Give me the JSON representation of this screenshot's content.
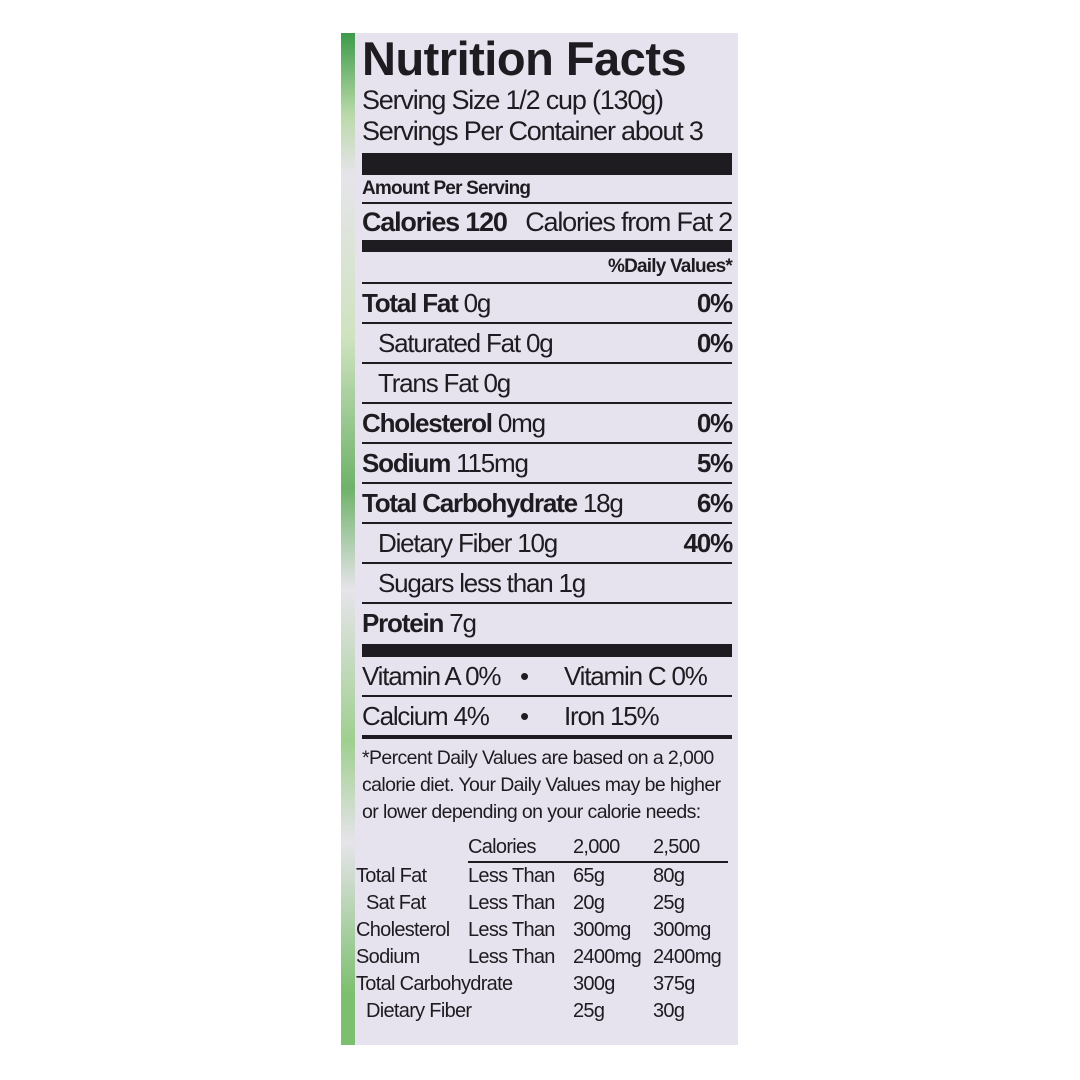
{
  "title": "Nutrition Facts",
  "serving_size": "Serving Size 1/2 cup (130g)",
  "servings_per_container": "Servings Per Container about 3",
  "amount_per_serving": "Amount Per Serving",
  "calories": {
    "label": "Calories 120",
    "from_fat": "Calories from Fat 2"
  },
  "daily_values_header": "%Daily Values*",
  "nutrients": [
    {
      "name": "Total Fat",
      "amount": "0g",
      "dv": "0%"
    },
    {
      "name": "Saturated Fat",
      "amount": "0g",
      "dv": "0%"
    },
    {
      "name": "Trans Fat",
      "amount": "0g",
      "dv": ""
    },
    {
      "name": "Cholesterol",
      "amount": "0mg",
      "dv": "0%"
    },
    {
      "name": "Sodium",
      "amount": "115mg",
      "dv": "5%"
    },
    {
      "name": "Total Carbohydrate",
      "amount": "18g",
      "dv": "6%"
    },
    {
      "name": "Dietary Fiber",
      "amount": "10g",
      "dv": "40%"
    },
    {
      "name": "Sugars",
      "amount": "less than 1g",
      "dv": ""
    },
    {
      "name": "Protein",
      "amount": "7g",
      "dv": ""
    }
  ],
  "vitamins": [
    {
      "left": "Vitamin A 0%",
      "right": "Vitamin C 0%"
    },
    {
      "left": "Calcium 4%",
      "right": "Iron 15%"
    }
  ],
  "bullet": "•",
  "footnote": "*Percent Daily Values are based on a 2,000 calorie diet. Your Daily Values may be higher or lower depending on your calorie needs:",
  "reference_table": {
    "header": [
      "",
      "Calories",
      "2,000",
      "2,500"
    ],
    "rows": [
      [
        "Total Fat",
        "Less Than",
        "65g",
        "80g"
      ],
      [
        " Sat Fat",
        "Less Than",
        "20g",
        "25g"
      ],
      [
        "Cholesterol",
        "Less Than",
        "300mg",
        "300mg"
      ],
      [
        "Sodium",
        "Less Than",
        "2400mg",
        "2400mg"
      ],
      [
        "Total Carbohydrate",
        "",
        "300g",
        "375g"
      ],
      [
        " Dietary Fiber",
        "",
        "25g",
        "30g"
      ]
    ]
  },
  "colors": {
    "panel": "#e6e2ee",
    "ink": "#1e1c20",
    "leaf_green": "#3d9a4a"
  }
}
